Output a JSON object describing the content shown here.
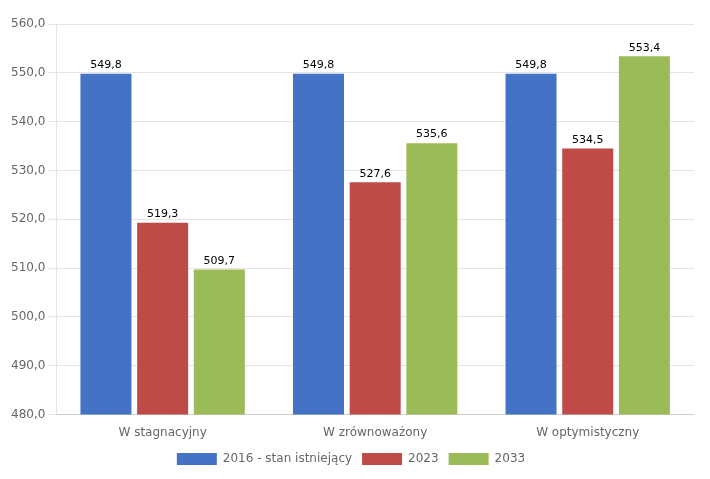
{
  "chart_data": {
    "type": "bar",
    "categories": [
      "W stagnacyjny",
      "W zrównoważony",
      "W optymistyczny"
    ],
    "series": [
      {
        "name": "2016 - stan istniejący",
        "color": "#4472C4",
        "values": [
          549.8,
          549.8,
          549.8
        ],
        "value_labels": [
          "549,8",
          "549,8",
          "549,8"
        ]
      },
      {
        "name": "2023",
        "color": "#BE4B48",
        "values": [
          519.3,
          527.6,
          534.5
        ],
        "value_labels": [
          "519,3",
          "527,6",
          "534,5"
        ]
      },
      {
        "name": "2033",
        "color": "#9BBB59",
        "values": [
          509.7,
          535.6,
          553.4
        ],
        "value_labels": [
          "509,7",
          "535,6",
          "553,4"
        ]
      }
    ],
    "ylim": [
      480.0,
      560.0
    ],
    "yticks": [
      {
        "value": 480.0,
        "label": "480,0"
      },
      {
        "value": 490.0,
        "label": "490,0"
      },
      {
        "value": 500.0,
        "label": "500,0"
      },
      {
        "value": 510.0,
        "label": "510,0"
      },
      {
        "value": 520.0,
        "label": "520,0"
      },
      {
        "value": 530.0,
        "label": "530,0"
      },
      {
        "value": 540.0,
        "label": "540,0"
      },
      {
        "value": 550.0,
        "label": "550,0"
      },
      {
        "value": 560.0,
        "label": "560,0"
      }
    ],
    "grid": true,
    "legend": "bottom",
    "data_labels": true
  }
}
